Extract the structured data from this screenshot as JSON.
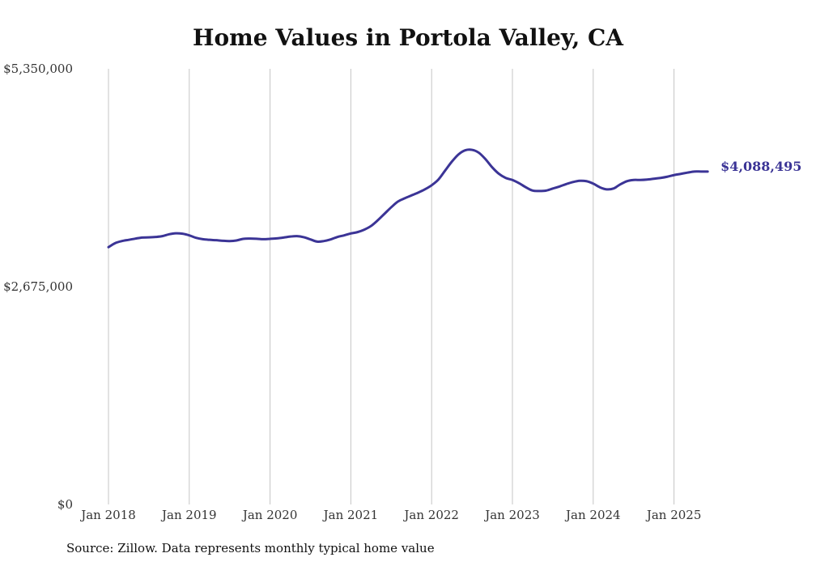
{
  "chart_data": {
    "type": "line",
    "title": "Home Values in Portola Valley, CA",
    "xlabel": "",
    "ylabel": "",
    "ylim": [
      0,
      5350000
    ],
    "y_ticks": [
      {
        "value": 0,
        "label": "$0"
      },
      {
        "value": 2675000,
        "label": "$2,675,000"
      },
      {
        "value": 5350000,
        "label": "$5,350,000"
      }
    ],
    "x_ticks": [
      {
        "value": "2018-01",
        "label": "Jan 2018"
      },
      {
        "value": "2019-01",
        "label": "Jan 2019"
      },
      {
        "value": "2020-01",
        "label": "Jan 2020"
      },
      {
        "value": "2021-01",
        "label": "Jan 2021"
      },
      {
        "value": "2022-01",
        "label": "Jan 2022"
      },
      {
        "value": "2023-01",
        "label": "Jan 2023"
      },
      {
        "value": "2024-01",
        "label": "Jan 2024"
      },
      {
        "value": "2025-01",
        "label": "Jan 2025"
      }
    ],
    "grid": {
      "vertical": true,
      "horizontal": false
    },
    "series": [
      {
        "color": "#3b3496",
        "x": [
          "2018-01",
          "2018-02",
          "2018-03",
          "2018-04",
          "2018-05",
          "2018-06",
          "2018-07",
          "2018-08",
          "2018-09",
          "2018-10",
          "2018-11",
          "2018-12",
          "2019-01",
          "2019-02",
          "2019-03",
          "2019-04",
          "2019-05",
          "2019-06",
          "2019-07",
          "2019-08",
          "2019-09",
          "2019-10",
          "2019-11",
          "2019-12",
          "2020-01",
          "2020-02",
          "2020-03",
          "2020-04",
          "2020-05",
          "2020-06",
          "2020-07",
          "2020-08",
          "2020-09",
          "2020-10",
          "2020-11",
          "2020-12",
          "2021-01",
          "2021-02",
          "2021-03",
          "2021-04",
          "2021-05",
          "2021-06",
          "2021-07",
          "2021-08",
          "2021-09",
          "2021-10",
          "2021-11",
          "2021-12",
          "2022-01",
          "2022-02",
          "2022-03",
          "2022-04",
          "2022-05",
          "2022-06",
          "2022-07",
          "2022-08",
          "2022-09",
          "2022-10",
          "2022-11",
          "2022-12",
          "2023-01",
          "2023-02",
          "2023-03",
          "2023-04",
          "2023-05",
          "2023-06",
          "2023-07",
          "2023-08",
          "2023-09",
          "2023-10",
          "2023-11",
          "2023-12",
          "2024-01",
          "2024-02",
          "2024-03",
          "2024-04",
          "2024-05",
          "2024-06",
          "2024-07",
          "2024-08",
          "2024-09",
          "2024-10",
          "2024-11",
          "2024-12",
          "2025-01",
          "2025-02",
          "2025-03",
          "2025-04",
          "2025-05",
          "2025-06"
        ],
        "values": [
          3160000,
          3210000,
          3235000,
          3250000,
          3265000,
          3278000,
          3280000,
          3285000,
          3295000,
          3318000,
          3330000,
          3325000,
          3305000,
          3275000,
          3258000,
          3250000,
          3245000,
          3238000,
          3235000,
          3242000,
          3262000,
          3265000,
          3263000,
          3258000,
          3262000,
          3268000,
          3278000,
          3290000,
          3295000,
          3282000,
          3255000,
          3228000,
          3235000,
          3255000,
          3285000,
          3305000,
          3328000,
          3345000,
          3375000,
          3420000,
          3490000,
          3570000,
          3650000,
          3720000,
          3760000,
          3795000,
          3830000,
          3870000,
          3920000,
          3990000,
          4100000,
          4210000,
          4300000,
          4350000,
          4355000,
          4320000,
          4240000,
          4140000,
          4060000,
          4010000,
          3985000,
          3945000,
          3895000,
          3855000,
          3850000,
          3855000,
          3880000,
          3905000,
          3935000,
          3960000,
          3975000,
          3970000,
          3940000,
          3895000,
          3870000,
          3880000,
          3930000,
          3970000,
          3985000,
          3985000,
          3990000,
          4000000,
          4010000,
          4025000,
          4045000,
          4060000,
          4075000,
          4088495,
          4088495,
          4088495
        ],
        "end_label": "$4,088,495"
      }
    ]
  },
  "source_note": "Source: Zillow. Data represents monthly typical home value"
}
